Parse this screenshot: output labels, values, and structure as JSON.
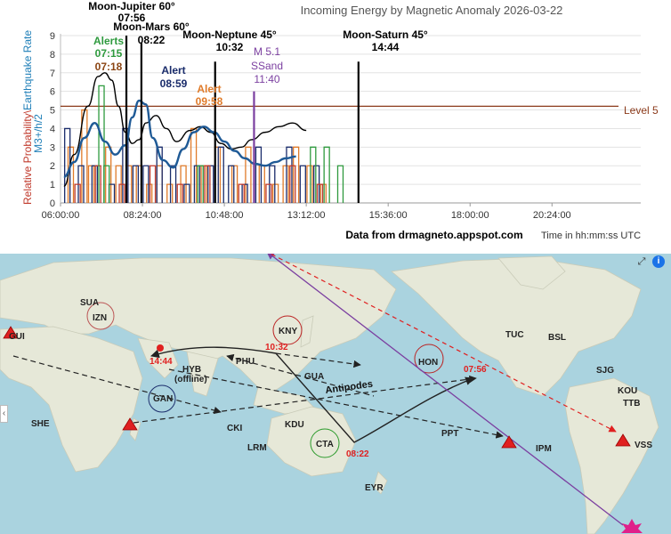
{
  "chart_data": {
    "type": "line",
    "title": "Incoming Energy by Magnetic Anomaly 2026-03-22",
    "ylabel_parts": [
      "Relative Probability",
      "\\",
      "Earthquake Rate",
      " M3+/h/2"
    ],
    "ylim": [
      0,
      9
    ],
    "yticks": [
      "0",
      "1",
      "2",
      "3",
      "4",
      "5",
      "6",
      "7",
      "8",
      "9"
    ],
    "x_range_hours": [
      6,
      23
    ],
    "xticks": [
      {
        "hour": 6.0,
        "label": "06:00:00"
      },
      {
        "hour": 8.4,
        "label": "08:24:00"
      },
      {
        "hour": 10.8,
        "label": "10:48:00"
      },
      {
        "hour": 13.2,
        "label": "13:12:00"
      },
      {
        "hour": 15.6,
        "label": "15:36:00"
      },
      {
        "hour": 18.0,
        "label": "18:00:00"
      },
      {
        "hour": 20.4,
        "label": "20:24:00"
      }
    ],
    "level_line": {
      "value": 5.2,
      "label": "Level 5",
      "color": "#8b3a1a"
    },
    "black_curve": {
      "color": "#000000",
      "x": [
        6.1,
        6.4,
        6.8,
        7.1,
        7.3,
        7.5,
        7.7,
        7.9,
        8.1,
        8.3,
        8.5,
        8.8,
        9.1,
        9.4,
        9.8,
        10.1,
        10.4,
        10.7,
        11.0,
        11.3,
        11.6,
        12.0,
        12.4,
        12.8,
        13.2
      ],
      "y": [
        0.9,
        2.6,
        5.2,
        6.8,
        7.0,
        6.6,
        5.2,
        3.8,
        3.2,
        3.4,
        4.3,
        4.7,
        4.0,
        3.3,
        3.9,
        4.1,
        3.8,
        3.2,
        2.9,
        3.0,
        3.4,
        3.8,
        4.1,
        4.3,
        3.9
      ]
    },
    "blue_curve": {
      "color": "#1f5a96",
      "x": [
        6.1,
        6.4,
        6.7,
        7.0,
        7.3,
        7.6,
        7.9,
        8.1,
        8.3,
        8.5,
        8.7,
        9.0,
        9.3,
        9.6,
        9.9,
        10.2,
        10.5,
        10.8,
        11.1,
        11.4,
        11.7,
        12.0,
        12.3,
        12.6,
        12.9
      ],
      "y": [
        1.4,
        2.2,
        3.5,
        4.3,
        3.3,
        2.6,
        3.1,
        4.6,
        5.5,
        5.3,
        3.5,
        2.3,
        1.9,
        2.9,
        3.8,
        4.1,
        3.8,
        3.3,
        2.8,
        2.4,
        2.1,
        2.0,
        2.2,
        2.4,
        2.5
      ]
    },
    "spike_series": [
      {
        "name": "orange",
        "color": "#e07b2a",
        "values": [
          [
            6.3,
            3
          ],
          [
            6.7,
            5
          ],
          [
            6.9,
            2
          ],
          [
            7.4,
            3
          ],
          [
            7.7,
            2
          ],
          [
            8.0,
            2
          ],
          [
            8.3,
            2
          ],
          [
            8.6,
            1
          ],
          [
            8.9,
            2
          ],
          [
            9.2,
            1
          ],
          [
            9.6,
            2
          ],
          [
            9.9,
            4
          ],
          [
            10.2,
            2
          ],
          [
            10.6,
            3
          ],
          [
            11.1,
            2
          ],
          [
            11.5,
            3
          ],
          [
            11.9,
            2
          ],
          [
            12.3,
            1
          ],
          [
            12.6,
            2
          ],
          [
            12.9,
            3
          ],
          [
            13.3,
            2
          ],
          [
            13.7,
            1
          ]
        ]
      },
      {
        "name": "navy",
        "color": "#1a2c6b",
        "values": [
          [
            6.2,
            4
          ],
          [
            6.6,
            2
          ],
          [
            7.0,
            2
          ],
          [
            7.5,
            1
          ],
          [
            7.9,
            4
          ],
          [
            8.2,
            2
          ],
          [
            8.5,
            2
          ],
          [
            8.9,
            3
          ],
          [
            9.3,
            2
          ],
          [
            9.7,
            1
          ],
          [
            10.0,
            2
          ],
          [
            10.4,
            2
          ],
          [
            10.7,
            3
          ],
          [
            11.0,
            2
          ],
          [
            11.4,
            1
          ],
          [
            11.8,
            3
          ],
          [
            12.2,
            2
          ],
          [
            12.7,
            3
          ],
          [
            13.1,
            2
          ],
          [
            13.5,
            2
          ]
        ]
      },
      {
        "name": "red",
        "color": "#c0392b",
        "values": [
          [
            6.5,
            1
          ],
          [
            7.1,
            2
          ],
          [
            7.8,
            1
          ],
          [
            8.7,
            2
          ],
          [
            9.5,
            1
          ],
          [
            10.3,
            2
          ],
          [
            11.3,
            1
          ],
          [
            12.1,
            1
          ],
          [
            12.8,
            2
          ],
          [
            13.6,
            1
          ]
        ]
      },
      {
        "name": "green",
        "color": "#2e9a3e",
        "values": [
          [
            7.2,
            6.3
          ],
          [
            7.35,
            2
          ],
          [
            10.1,
            2
          ],
          [
            13.4,
            3
          ],
          [
            13.8,
            3
          ],
          [
            14.2,
            2
          ]
        ]
      }
    ],
    "vertical_events": [
      {
        "hour": 7.93,
        "height": 9.0,
        "color": "#000000"
      },
      {
        "hour": 8.37,
        "height": 8.6,
        "color": "#000000"
      },
      {
        "hour": 10.53,
        "height": 7.6,
        "color": "#000000"
      },
      {
        "hour": 11.67,
        "height": 6.0,
        "color": "#7b3fa0"
      },
      {
        "hour": 14.73,
        "height": 7.6,
        "color": "#000000"
      }
    ],
    "annotations": [
      {
        "text": "Moon-Jupiter 60°",
        "sub": "07:56",
        "color": "#000000"
      },
      {
        "text": "Moon-Mars 60°",
        "sub": "08:22",
        "color": "#000000"
      },
      {
        "text": "Moon-Neptune 45°",
        "sub": "10:32",
        "color": "#000000"
      },
      {
        "text": "M 5.1",
        "sub": "SSand",
        "sub2": "11:40",
        "color": "#7b3fa0"
      },
      {
        "text": "Moon-Saturn 45°",
        "sub": "14:44",
        "color": "#000000"
      },
      {
        "text": "Alerts",
        "sub": "07:15",
        "color": "#2e9a3e"
      },
      {
        "text": "07:18",
        "color": "#8b4513"
      },
      {
        "text": "Alert",
        "sub": "08:59",
        "color": "#1a2c6b"
      },
      {
        "text": "Alert",
        "sub": "09:58",
        "color": "#e07b2a"
      }
    ],
    "footer_source": "Data from drmagneto.appspot.com",
    "footer_time": "Time in hh:mm:ss UTC"
  },
  "map": {
    "stations": [
      "SUA",
      "IZN",
      "GUI",
      "SHE",
      "GAN",
      "HYB",
      "(offline)",
      "PHU",
      "KNY",
      "GUA",
      "CKI",
      "KDU",
      "LRM",
      "CTA",
      "EYR",
      "HON",
      "PPT",
      "TUC",
      "BSL",
      "SJG",
      "KOU",
      "TTB",
      "VSS",
      "IPM"
    ],
    "time_labels": [
      "14:44",
      "10:32",
      "08:22",
      "07:56"
    ],
    "antipodes_label": "Antipodes",
    "colors": {
      "ocean": "#aad3df",
      "land": "#e8e8dc",
      "ne_path": "#222222",
      "purple_path": "#7b3fa0",
      "red_path": "#e02020"
    },
    "buttons": {
      "fullscreen": "⤢",
      "info": "i",
      "collapse": "‹"
    }
  }
}
